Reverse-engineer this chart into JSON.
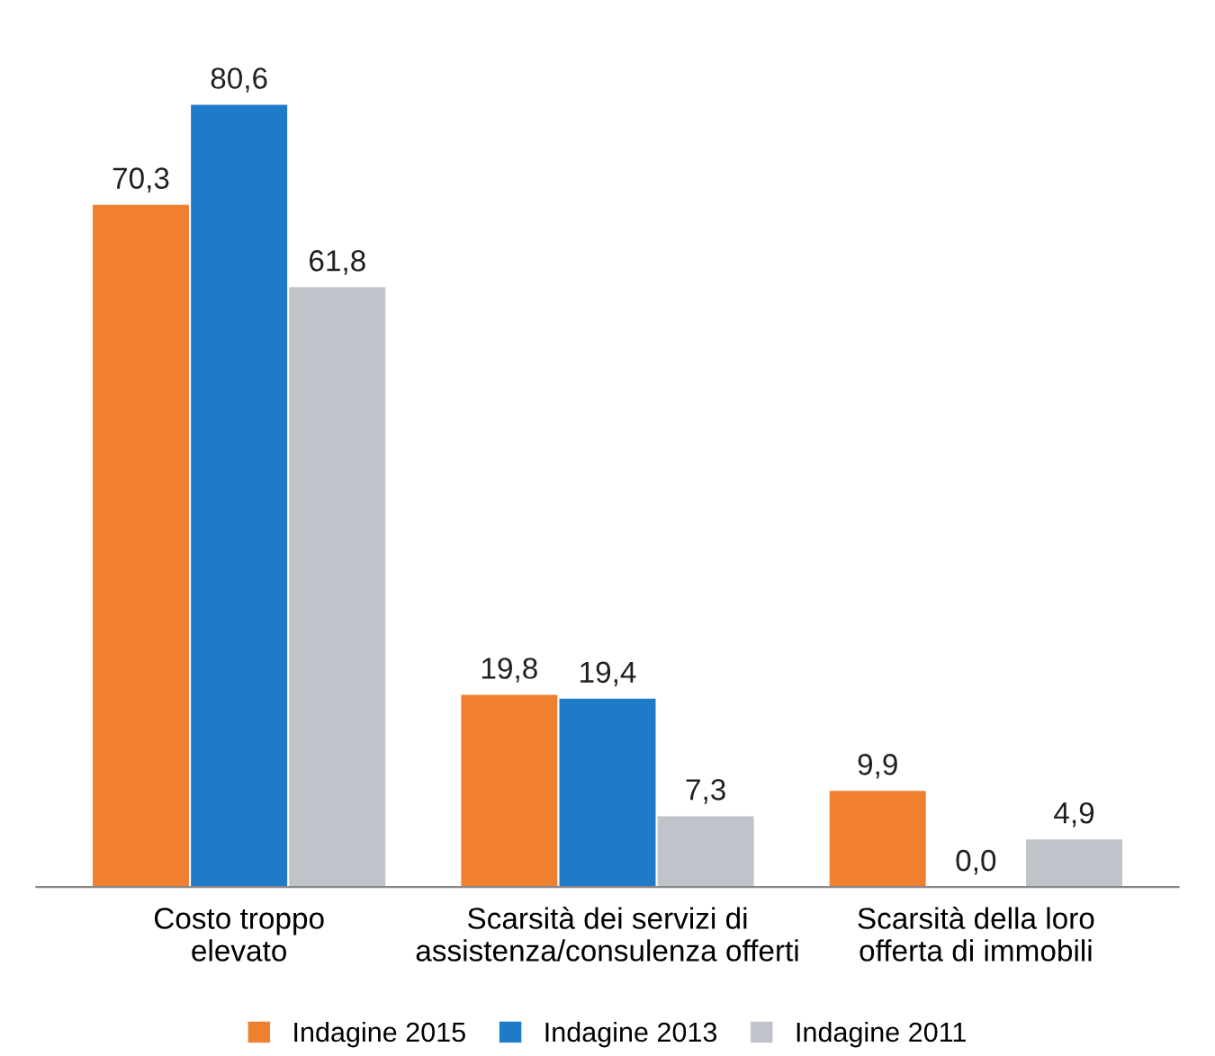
{
  "chart_data": {
    "type": "bar",
    "categories": [
      "Costo troppo\nelevato",
      "Scarsità dei servizi di\nassistenza/consulenza offerti",
      "Scarsità della loro\nofferta di immobili"
    ],
    "series": [
      {
        "name": "Indagine 2015",
        "color": "#f08030",
        "values": [
          70.3,
          19.8,
          9.9
        ],
        "value_labels": [
          "70,3",
          "19,8",
          "9,9"
        ]
      },
      {
        "name": "Indagine 2013",
        "color": "#1f7ac8",
        "values": [
          80.6,
          19.4,
          0.0
        ],
        "value_labels": [
          "80,6",
          "19,4",
          "0,0"
        ]
      },
      {
        "name": "Indagine 2011",
        "color": "#c0c4ca",
        "values": [
          61.8,
          7.3,
          4.9
        ],
        "value_labels": [
          "61,8",
          "7,3",
          "4,9"
        ]
      }
    ],
    "legend": "bottom",
    "grid": false
  }
}
